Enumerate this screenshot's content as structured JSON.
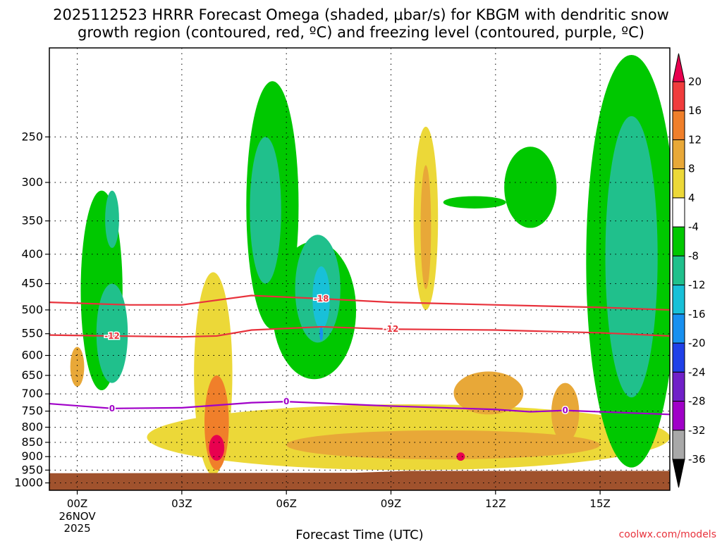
{
  "chart_data": {
    "type": "heatmap",
    "title": "2025112523 HRRR Forecast Omega (shaded, μbar/s) for KBGM with dendritic snow growth region (contoured, red, ºC) and freezing level (contoured, purple, ºC)",
    "title_lines": [
      "2025112523 HRRR Forecast Omega (shaded, μbar/s) for KBGM with dendritic snow",
      "growth region (contoured, red, ºC) and freezing level (contoured, purple, ºC)"
    ],
    "xlabel": "Forecast Time (UTC)",
    "ylabel": "",
    "credit": "coolwx.com/models",
    "x_range_hours": [
      -0.8,
      17.0
    ],
    "y_range_hPa": [
      175,
      1030
    ],
    "x_ticks": [
      {
        "hour": 0,
        "label": "00Z",
        "sub": [
          "26NOV",
          "2025"
        ]
      },
      {
        "hour": 3,
        "label": "03Z"
      },
      {
        "hour": 6,
        "label": "06Z"
      },
      {
        "hour": 9,
        "label": "09Z"
      },
      {
        "hour": 12,
        "label": "12Z"
      },
      {
        "hour": 15,
        "label": "15Z"
      }
    ],
    "y_ticks": [
      250,
      300,
      350,
      400,
      450,
      500,
      550,
      600,
      650,
      700,
      750,
      800,
      850,
      900,
      950,
      1000
    ],
    "colorbar": {
      "levels": [
        20,
        16,
        12,
        8,
        4,
        -4,
        -8,
        -12,
        -16,
        -20,
        -24,
        -28,
        -32,
        -36
      ],
      "colors": [
        "#e8004f",
        "#f03c3c",
        "#f07f2a",
        "#e8a838",
        "#ecd838",
        "#ffffff",
        "#00c800",
        "#20c08c",
        "#18c0d8",
        "#1890f0",
        "#2040e8",
        "#7020c8",
        "#a000c8",
        "#a8a8a8",
        "#000000"
      ]
    },
    "ground_color": "#a0522d",
    "omega_regions": [
      {
        "name": "upslope-ascent-0-2Z",
        "value": -8,
        "center_hour": 0.7,
        "center_hPa": 500,
        "half_hours": 0.6,
        "half_hPa": 190
      },
      {
        "name": "ascent-core-1Z",
        "value": -12,
        "center_hour": 1.0,
        "center_hPa": 560,
        "half_hours": 0.45,
        "half_hPa": 110
      },
      {
        "name": "ascent-upper-1Z",
        "value": -12,
        "center_hour": 1.0,
        "center_hPa": 350,
        "half_hours": 0.2,
        "half_hPa": 40
      },
      {
        "name": "ascent-5-6Z",
        "value": -8,
        "center_hour": 5.6,
        "center_hPa": 370,
        "half_hours": 0.75,
        "half_hPa": 170
      },
      {
        "name": "ascent-5-6Z-lower",
        "value": -8,
        "center_hour": 6.8,
        "center_hPa": 520,
        "half_hours": 1.2,
        "half_hPa": 140
      },
      {
        "name": "ascent-core-5Z",
        "value": -12,
        "center_hour": 5.4,
        "center_hPa": 350,
        "half_hours": 0.45,
        "half_hPa": 100
      },
      {
        "name": "ascent-core-7Z",
        "value": -12,
        "center_hour": 6.9,
        "center_hPa": 470,
        "half_hours": 0.65,
        "half_hPa": 100
      },
      {
        "name": "ascent-max-7Z",
        "value": -16,
        "center_hour": 7.0,
        "center_hPa": 480,
        "half_hours": 0.25,
        "half_hPa": 60
      },
      {
        "name": "ascent-peak-7Z",
        "value": -20,
        "center_hour": 7.0,
        "center_hPa": 550,
        "half_hours": 0.05,
        "half_hPa": 15
      },
      {
        "name": "ascent-upper-12Z",
        "value": -8,
        "center_hour": 13.0,
        "center_hPa": 310,
        "half_hours": 0.75,
        "half_hPa": 50
      },
      {
        "name": "ascent-strip-11Z",
        "value": -8,
        "center_hour": 11.4,
        "center_hPa": 325,
        "half_hours": 0.9,
        "half_hPa": 8
      },
      {
        "name": "ascent-15-17Z",
        "value": -8,
        "center_hour": 15.9,
        "center_hPa": 560,
        "half_hours": 1.3,
        "half_hPa": 380
      },
      {
        "name": "ascent-core-16Z",
        "value": -12,
        "center_hour": 15.9,
        "center_hPa": 470,
        "half_hours": 0.75,
        "half_hPa": 240
      },
      {
        "name": "descent-lower-3-17Z",
        "value": 4,
        "center_hour": 9.5,
        "center_hPa": 840,
        "half_hours": 7.5,
        "half_hPa": 110
      },
      {
        "name": "descent-lower-core",
        "value": 8,
        "center_hour": 10.5,
        "center_hPa": 860,
        "half_hours": 4.5,
        "half_hPa": 50
      },
      {
        "name": "descent-4Z-column",
        "value": 4,
        "center_hour": 3.9,
        "center_hPa": 700,
        "half_hours": 0.55,
        "half_hPa": 270
      },
      {
        "name": "descent-core-4Z",
        "value": 12,
        "center_hour": 4.0,
        "center_hPa": 800,
        "half_hours": 0.35,
        "half_hPa": 150
      },
      {
        "name": "descent-peak-4Z",
        "value": 20,
        "center_hour": 4.0,
        "center_hPa": 870,
        "half_hours": 0.22,
        "half_hPa": 45
      },
      {
        "name": "descent-10Z-upper",
        "value": 4,
        "center_hour": 10.0,
        "center_hPa": 370,
        "half_hours": 0.35,
        "half_hPa": 130
      },
      {
        "name": "descent-10Z-core",
        "value": 8,
        "center_hour": 10.0,
        "center_hPa": 370,
        "half_hours": 0.15,
        "half_hPa": 90
      },
      {
        "name": "descent-12Z",
        "value": 8,
        "center_hour": 11.8,
        "center_hPa": 700,
        "half_hours": 1.0,
        "half_hPa": 60
      },
      {
        "name": "descent-11Z-peak",
        "value": 20,
        "center_hour": 11.0,
        "center_hPa": 900,
        "half_hours": 0.12,
        "half_hPa": 15
      },
      {
        "name": "descent-14Z",
        "value": 8,
        "center_hour": 14.0,
        "center_hPa": 760,
        "half_hours": 0.4,
        "half_hPa": 90
      },
      {
        "name": "descent-0Z-spot",
        "value": 8,
        "center_hour": 0.0,
        "center_hPa": 630,
        "half_hours": 0.2,
        "half_hPa": 50
      }
    ],
    "contours": [
      {
        "name": "dendritic-minus-18",
        "label": "-18",
        "color": "#e8323c",
        "points": [
          [
            -0.8,
            485
          ],
          [
            1.5,
            490
          ],
          [
            3.0,
            490
          ],
          [
            5.0,
            472
          ],
          [
            7.0,
            478
          ],
          [
            9.0,
            485
          ],
          [
            12.0,
            490
          ],
          [
            15.0,
            495
          ],
          [
            17.0,
            500
          ]
        ],
        "label_hours": [
          7.0
        ]
      },
      {
        "name": "dendritic-minus-12",
        "label": "-12",
        "color": "#e8323c",
        "points": [
          [
            -0.8,
            553
          ],
          [
            1.0,
            555
          ],
          [
            3.0,
            557
          ],
          [
            4.0,
            555
          ],
          [
            5.0,
            542
          ],
          [
            7.0,
            535
          ],
          [
            9.0,
            540
          ],
          [
            12.0,
            542
          ],
          [
            15.0,
            548
          ],
          [
            17.0,
            555
          ]
        ],
        "label_hours": [
          1.0,
          9.0
        ]
      },
      {
        "name": "freezing-level-0",
        "label": "0",
        "color": "#a000c8",
        "points": [
          [
            -0.8,
            728
          ],
          [
            1.0,
            742
          ],
          [
            3.0,
            740
          ],
          [
            5.0,
            725
          ],
          [
            6.0,
            722
          ],
          [
            9.0,
            735
          ],
          [
            12.0,
            745
          ],
          [
            13.0,
            752
          ],
          [
            14.0,
            748
          ],
          [
            15.0,
            752
          ],
          [
            17.0,
            760
          ]
        ],
        "label_hours": [
          1.0,
          6.0,
          14.0
        ]
      }
    ]
  }
}
